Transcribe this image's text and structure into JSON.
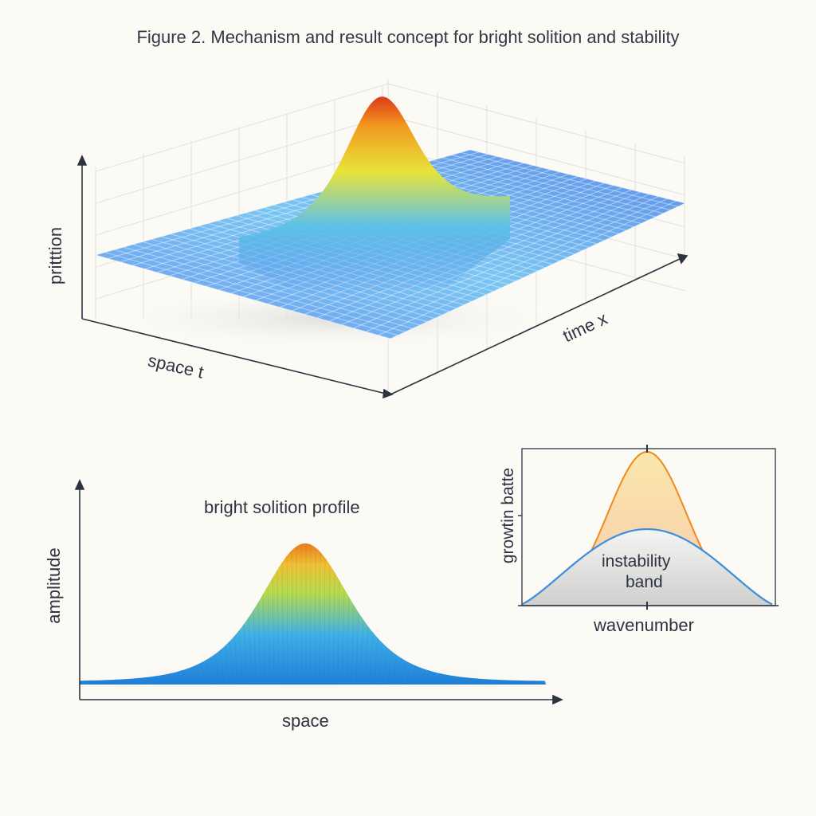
{
  "figure": {
    "title": "Figure 2. Mechanism and result concept for bright solition and stability"
  },
  "surface_plot": {
    "z_label": "pritttion",
    "x_label": "space t",
    "y_label": "time x",
    "colormap": [
      "#3d6fe0",
      "#5fb6ee",
      "#f2e13a",
      "#f08a1c",
      "#d9371a"
    ]
  },
  "profile_plot": {
    "title": "bright solition profile",
    "x_label": "space",
    "y_label": "amplitude"
  },
  "instability_plot": {
    "y_label": "growtin batte",
    "x_label": "wavenumber",
    "band_label_line1": "instability",
    "band_label_line2": "band",
    "colors": {
      "upper_curve": "#f08a1c",
      "lower_curve": "#3a8fe0"
    }
  }
}
